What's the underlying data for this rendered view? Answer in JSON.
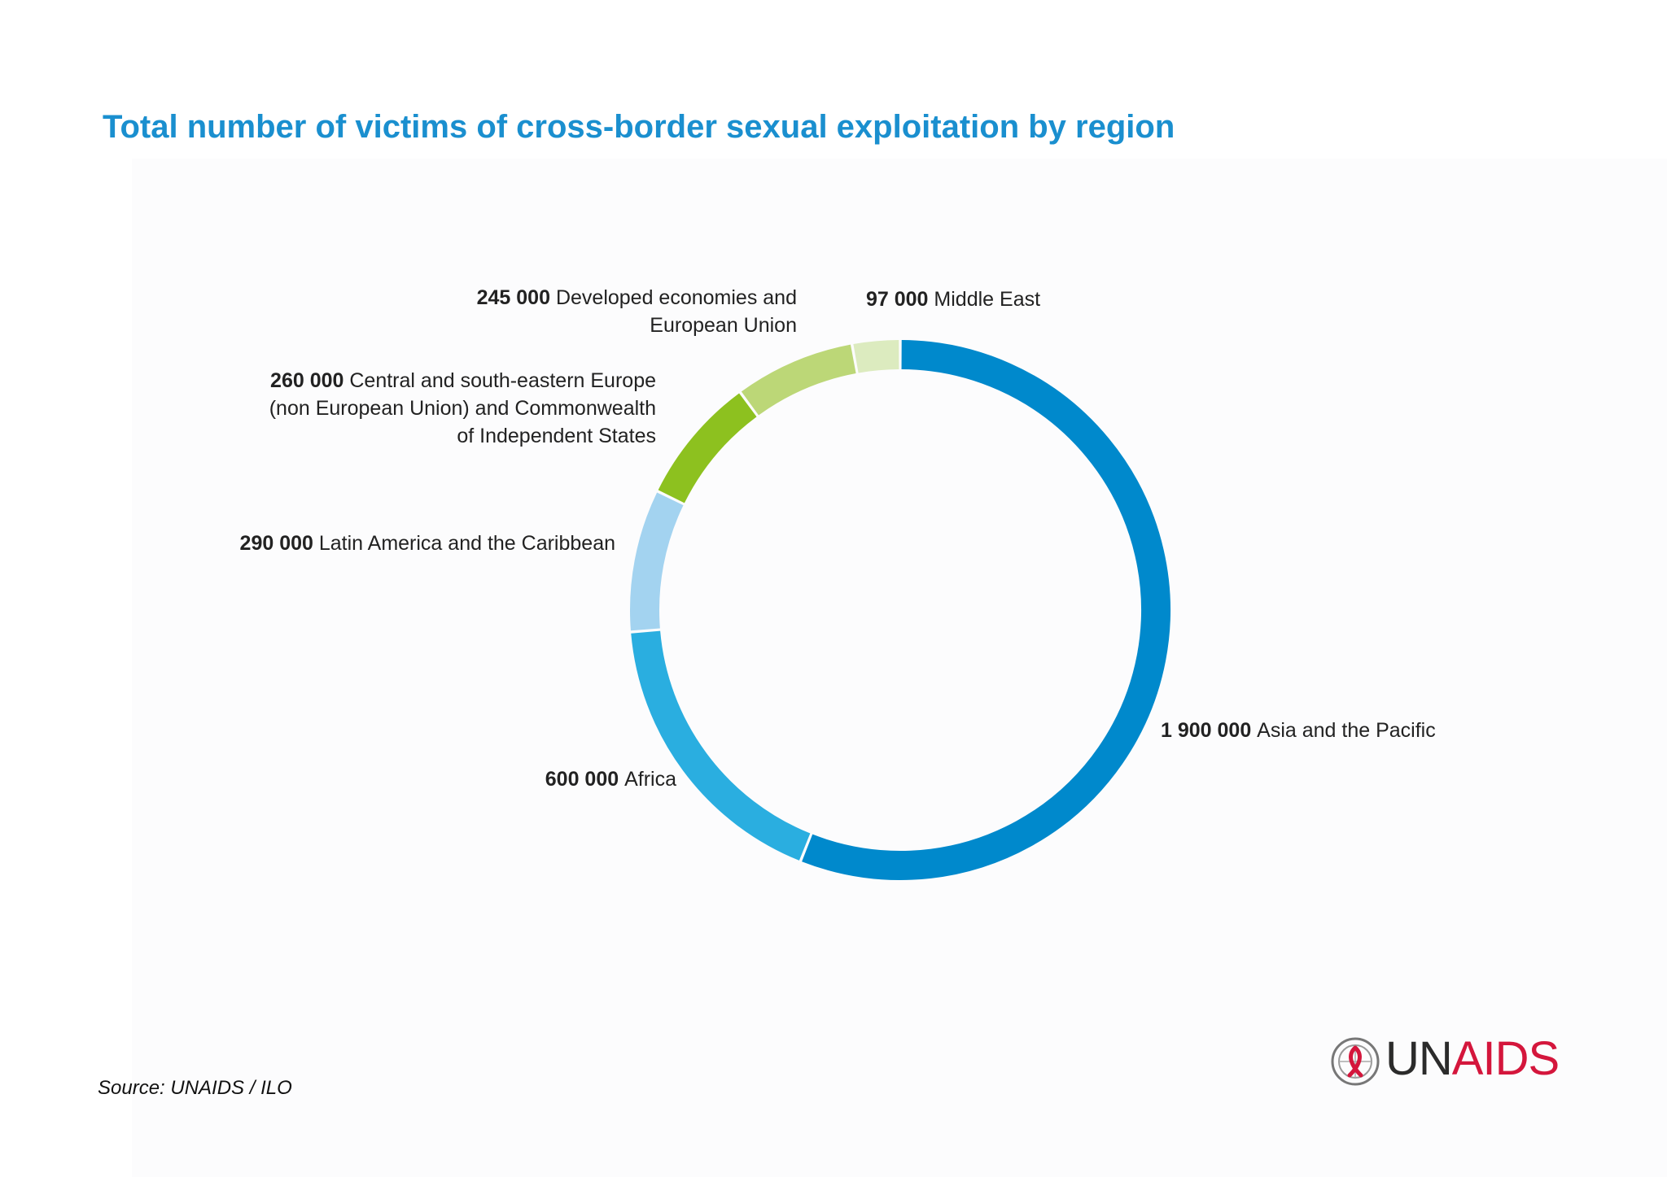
{
  "title": "Total number of victims of cross-border sexual exploitation by region",
  "source": "Source: UNAIDS / ILO",
  "logo": {
    "part1": "UN",
    "part2": "AIDS"
  },
  "chart_data": {
    "type": "pie",
    "variant": "donut",
    "title": "Total number of victims of cross-border sexual exploitation by region",
    "slices": [
      {
        "value_label": "1 900 000",
        "label_lines": [
          "Asia and the Pacific"
        ],
        "value": 1900000,
        "color": "#0089cc"
      },
      {
        "value_label": "600 000",
        "label_lines": [
          "Africa"
        ],
        "value": 600000,
        "color": "#2aaee0"
      },
      {
        "value_label": "290 000",
        "label_lines": [
          "Latin America and the Caribbean"
        ],
        "value": 290000,
        "color": "#a3d3f0"
      },
      {
        "value_label": "260 000",
        "label_lines": [
          "Central and south-eastern Europe",
          "(non European Union) and Commonwealth",
          "of Independent States"
        ],
        "value": 260000,
        "color": "#8dc11f"
      },
      {
        "value_label": "245 000",
        "label_lines": [
          "Developed economies and",
          "European Union"
        ],
        "value": 245000,
        "color": "#bcd777"
      },
      {
        "value_label": "97 000",
        "label_lines": [
          "Middle East"
        ],
        "value": 97000,
        "color": "#dcebbf"
      }
    ]
  }
}
